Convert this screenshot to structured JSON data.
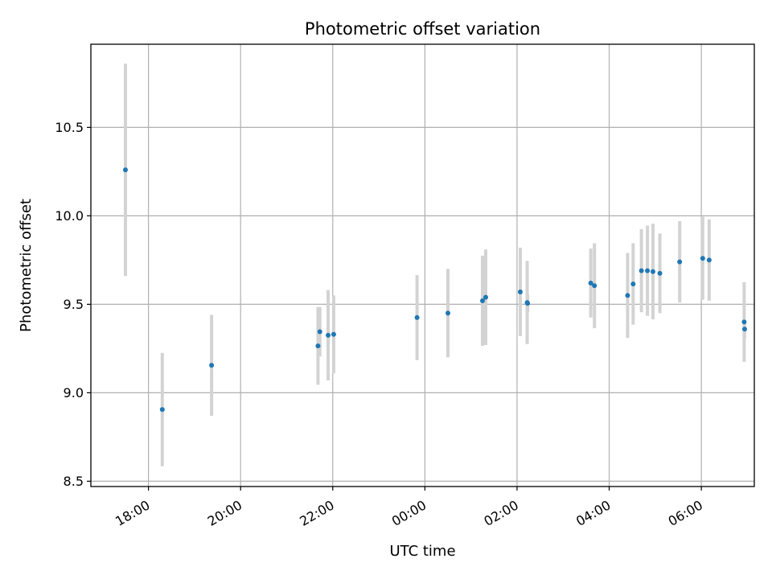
{
  "chart_data": {
    "type": "scatter",
    "title": "Photometric offset variation",
    "xlabel": "UTC time",
    "ylabel": "Photometric offset",
    "x_unit": "hours",
    "x_tick_labels": [
      "18:00",
      "20:00",
      "22:00",
      "00:00",
      "02:00",
      "04:00",
      "06:00"
    ],
    "x_ticks": [
      18,
      20,
      22,
      24,
      26,
      28,
      30
    ],
    "xlim": [
      16.75,
      31.15
    ],
    "y_ticks": [
      8.5,
      9.0,
      9.5,
      10.0,
      10.5
    ],
    "y_tick_labels": [
      "8.5",
      "9.0",
      "9.5",
      "10.0",
      "10.5"
    ],
    "ylim": [
      8.47,
      10.97
    ],
    "grid": true,
    "colors": {
      "marker": "#1f77b4",
      "errorbar": "#d3d3d3",
      "grid": "#b0b0b0",
      "axes": "#000000"
    },
    "series": [
      {
        "points": [
          {
            "x": 17.5,
            "y": 10.26,
            "err": 0.6
          },
          {
            "x": 18.3,
            "y": 8.905,
            "err": 0.32
          },
          {
            "x": 19.37,
            "y": 9.155,
            "err": 0.285
          },
          {
            "x": 21.68,
            "y": 9.265,
            "err": 0.22
          },
          {
            "x": 21.72,
            "y": 9.345,
            "err": 0.14
          },
          {
            "x": 21.9,
            "y": 9.325,
            "err": 0.255
          },
          {
            "x": 22.02,
            "y": 9.33,
            "err": 0.22
          },
          {
            "x": 23.83,
            "y": 9.425,
            "err": 0.24
          },
          {
            "x": 24.5,
            "y": 9.45,
            "err": 0.25
          },
          {
            "x": 25.25,
            "y": 9.52,
            "err": 0.255
          },
          {
            "x": 25.32,
            "y": 9.54,
            "err": 0.27
          },
          {
            "x": 26.07,
            "y": 9.57,
            "err": 0.25
          },
          {
            "x": 26.22,
            "y": 9.51,
            "err": 0.235
          },
          {
            "x": 26.23,
            "y": 9.505,
            "err": 0.05
          },
          {
            "x": 27.6,
            "y": 9.62,
            "err": 0.195
          },
          {
            "x": 27.68,
            "y": 9.605,
            "err": 0.24
          },
          {
            "x": 28.4,
            "y": 9.55,
            "err": 0.24
          },
          {
            "x": 28.52,
            "y": 9.615,
            "err": 0.23
          },
          {
            "x": 28.7,
            "y": 9.69,
            "err": 0.235
          },
          {
            "x": 28.83,
            "y": 9.69,
            "err": 0.255
          },
          {
            "x": 28.95,
            "y": 9.685,
            "err": 0.27
          },
          {
            "x": 29.1,
            "y": 9.675,
            "err": 0.225
          },
          {
            "x": 29.53,
            "y": 9.74,
            "err": 0.23
          },
          {
            "x": 30.03,
            "y": 9.76,
            "err": 0.235
          },
          {
            "x": 30.17,
            "y": 9.75,
            "err": 0.23
          },
          {
            "x": 30.93,
            "y": 9.4,
            "err": 0.225
          },
          {
            "x": 30.94,
            "y": 9.36,
            "err": 0.05
          }
        ]
      }
    ]
  }
}
